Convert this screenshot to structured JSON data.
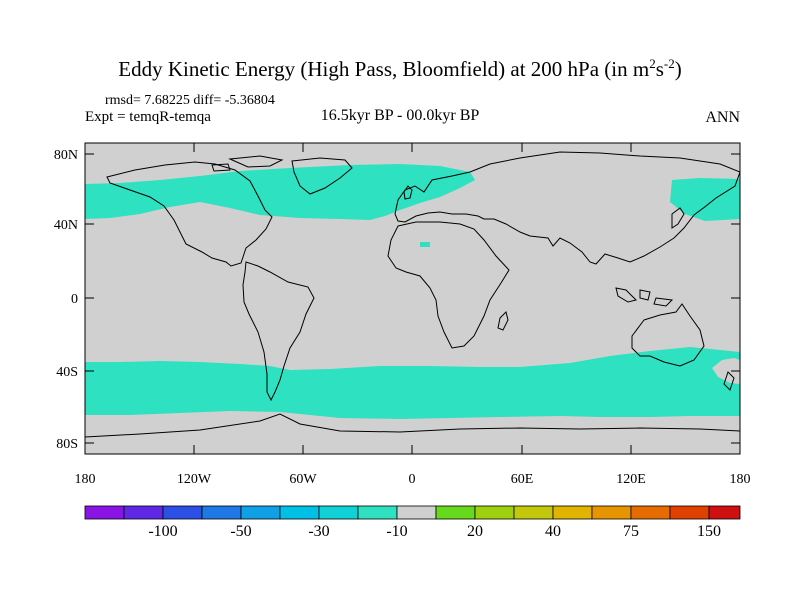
{
  "title": {
    "prefix": "Eddy Kinetic Energy (High Pass, Bloomfield) at 200 hPa (in m",
    "sup1": "2",
    "mid": "s",
    "sup2": "-2",
    "suffix": ")"
  },
  "stats": "rmsd= 7.68225 diff= -5.36804",
  "experiment": "Expt = temqR-temqa",
  "period": "16.5kyr BP - 00.0kyr BP",
  "season": "ANN",
  "axes": {
    "lat_labels": [
      "80N",
      "40N",
      "0",
      "40S",
      "80S"
    ],
    "lon_labels": [
      "180",
      "120W",
      "60W",
      "0",
      "60E",
      "120E",
      "180"
    ]
  },
  "colorbar": {
    "colors": [
      "#8a14e6",
      "#5f28e6",
      "#2c50e6",
      "#1e78e6",
      "#10a0e6",
      "#00c0e6",
      "#10d2d6",
      "#2ee1c0",
      "#d0d0d0",
      "#66d91c",
      "#9ed00e",
      "#c4c80a",
      "#e0b400",
      "#e69400",
      "#e66c00",
      "#e04000",
      "#d01010"
    ],
    "labels": [
      "-100",
      "-50",
      "-30",
      "-10",
      "20",
      "40",
      "75",
      "150"
    ]
  },
  "field_colors": {
    "negative": "#2ee1c0",
    "neutral": "#d0d0d0",
    "coast": "#000000"
  }
}
